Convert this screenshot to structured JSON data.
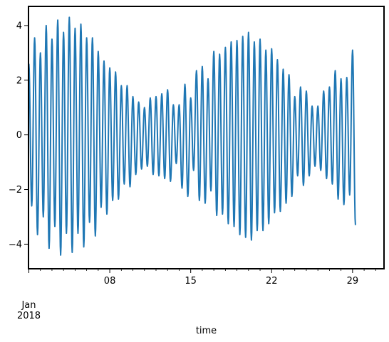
{
  "chart_data": {
    "type": "line",
    "title": "",
    "xlabel": "time",
    "ylabel": "",
    "grid": false,
    "legend": "none",
    "line_color": "#1f77b4",
    "x_range": [
      "2018-01-01",
      "2018-01-31"
    ],
    "ylim": [
      -4.9,
      4.7
    ],
    "y_ticks": [
      -4,
      -2,
      0,
      2,
      4
    ],
    "x_major_ticks": [
      {
        "date": "2018-01-08",
        "label": "08"
      },
      {
        "date": "2018-01-15",
        "label": "15"
      },
      {
        "date": "2018-01-22",
        "label": "22"
      },
      {
        "date": "2018-01-29",
        "label": "29"
      }
    ],
    "x_month_label": "Jan",
    "x_year_label": "2018",
    "series": [
      {
        "sampling": "6H",
        "start": "2018-01-01 00:00",
        "values": [
          2.6,
          -2.6,
          3.55,
          -3.65,
          3.0,
          -3.0,
          4.0,
          -4.15,
          3.5,
          -3.35,
          4.2,
          -4.4,
          3.75,
          -3.6,
          4.3,
          -4.3,
          3.9,
          -3.6,
          4.05,
          -4.1,
          3.55,
          -3.2,
          3.55,
          -3.7,
          3.05,
          -2.65,
          2.7,
          -2.9,
          2.45,
          -2.4,
          2.3,
          -2.35,
          1.8,
          -1.8,
          1.8,
          -1.9,
          1.4,
          -1.45,
          1.2,
          -1.25,
          1.0,
          -1.15,
          1.35,
          -1.45,
          1.4,
          -1.5,
          1.5,
          -1.6,
          1.65,
          -1.7,
          1.1,
          -1.05,
          1.1,
          -1.95,
          1.85,
          -2.25,
          1.35,
          -1.3,
          2.35,
          -2.4,
          2.5,
          -2.5,
          2.05,
          -2.05,
          3.05,
          -2.95,
          2.95,
          -2.9,
          3.2,
          -3.25,
          3.4,
          -3.35,
          3.45,
          -3.65,
          3.6,
          -3.75,
          3.75,
          -3.85,
          3.4,
          -3.5,
          3.5,
          -3.5,
          3.1,
          -3.25,
          3.15,
          -2.85,
          2.75,
          -2.8,
          2.4,
          -2.5,
          2.2,
          -2.25,
          1.4,
          -1.5,
          1.75,
          -1.85,
          1.6,
          -1.5,
          1.05,
          -1.15,
          1.05,
          -1.3,
          1.6,
          -1.6,
          1.75,
          -1.8,
          2.35,
          -2.35,
          2.05,
          -2.55,
          2.1,
          -2.2,
          3.1,
          -3.3
        ]
      }
    ]
  }
}
